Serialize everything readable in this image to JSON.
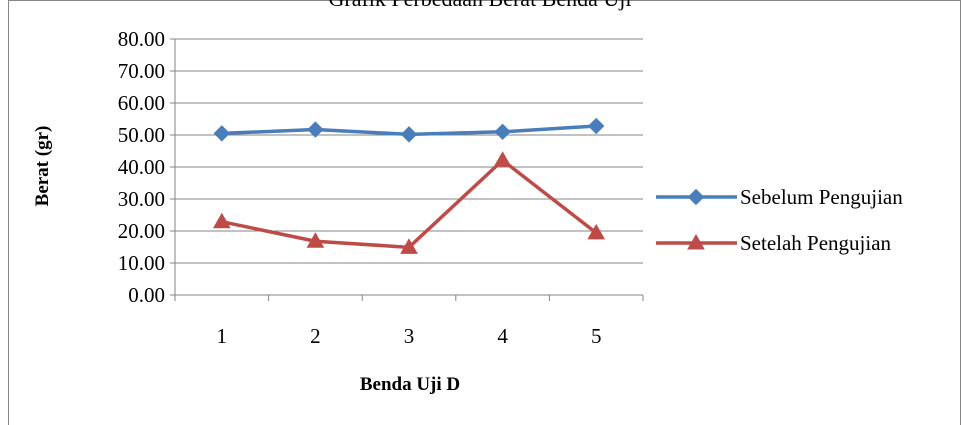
{
  "chart_data": {
    "type": "line",
    "title": "Grafik Perbedaan Berat Benda Uji",
    "xlabel": "Benda Uji D",
    "ylabel": "Berat (gr)",
    "categories": [
      "1",
      "2",
      "3",
      "4",
      "5"
    ],
    "ylim": [
      0,
      80
    ],
    "yticks": [
      "0.00",
      "10.00",
      "20.00",
      "30.00",
      "40.00",
      "50.00",
      "60.00",
      "70.00",
      "80.00"
    ],
    "grid": true,
    "legend_position": "right",
    "series": [
      {
        "name": "Sebelum Pengujian",
        "values": [
          50.5,
          51.7,
          50.2,
          51.0,
          52.8
        ],
        "color": "#4a7ebb",
        "marker": "diamond"
      },
      {
        "name": "Setelah Pengujian",
        "values": [
          22.9,
          16.8,
          14.9,
          42.1,
          19.4
        ],
        "color": "#be4b48",
        "marker": "triangle"
      }
    ]
  }
}
